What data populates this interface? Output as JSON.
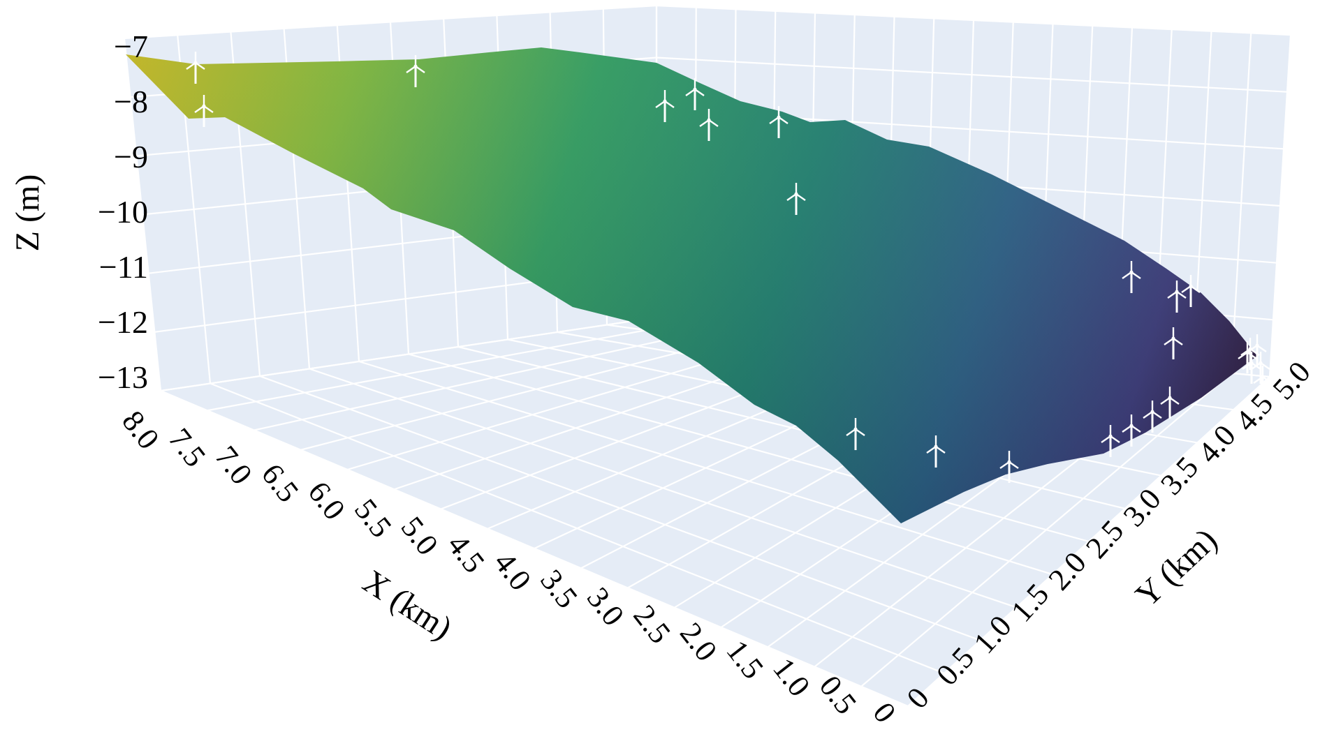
{
  "chart_data": {
    "type": "surface3d",
    "colorscale": "viridis",
    "colors": {
      "pane": "#e5ecf6",
      "grid": "#ffffff",
      "turbine": "#ffffff"
    },
    "xlabel": "X (km)",
    "ylabel": "Y (km)",
    "zlabel": "Z (m)",
    "x_ticks": [
      "8.0",
      "7.5",
      "7.0",
      "6.5",
      "6.0",
      "5.5",
      "5.0",
      "4.5",
      "4.0",
      "3.5",
      "3.0",
      "2.5",
      "2.0",
      "1.5",
      "1.0",
      "0.5",
      "0"
    ],
    "y_ticks": [
      "0",
      "0.5",
      "1.0",
      "1.5",
      "2.0",
      "2.5",
      "3.0",
      "3.5",
      "4.0",
      "4.5",
      "5.0"
    ],
    "z_ticks": [
      "−7",
      "−8",
      "−9",
      "−10",
      "−11",
      "−12",
      "−13"
    ],
    "xlim": [
      0,
      8
    ],
    "ylim": [
      0,
      5
    ],
    "zlim": [
      -13,
      -7
    ],
    "surface_corners": [
      {
        "x": 8.0,
        "y": 0.0,
        "z": -7.0
      },
      {
        "x": 8.0,
        "y": 5.0,
        "z": -7.3
      },
      {
        "x": 0.0,
        "y": 0.0,
        "z": -11.8
      },
      {
        "x": 0.0,
        "y": 5.0,
        "z": -13.0
      }
    ],
    "turbine_count": 25
  }
}
